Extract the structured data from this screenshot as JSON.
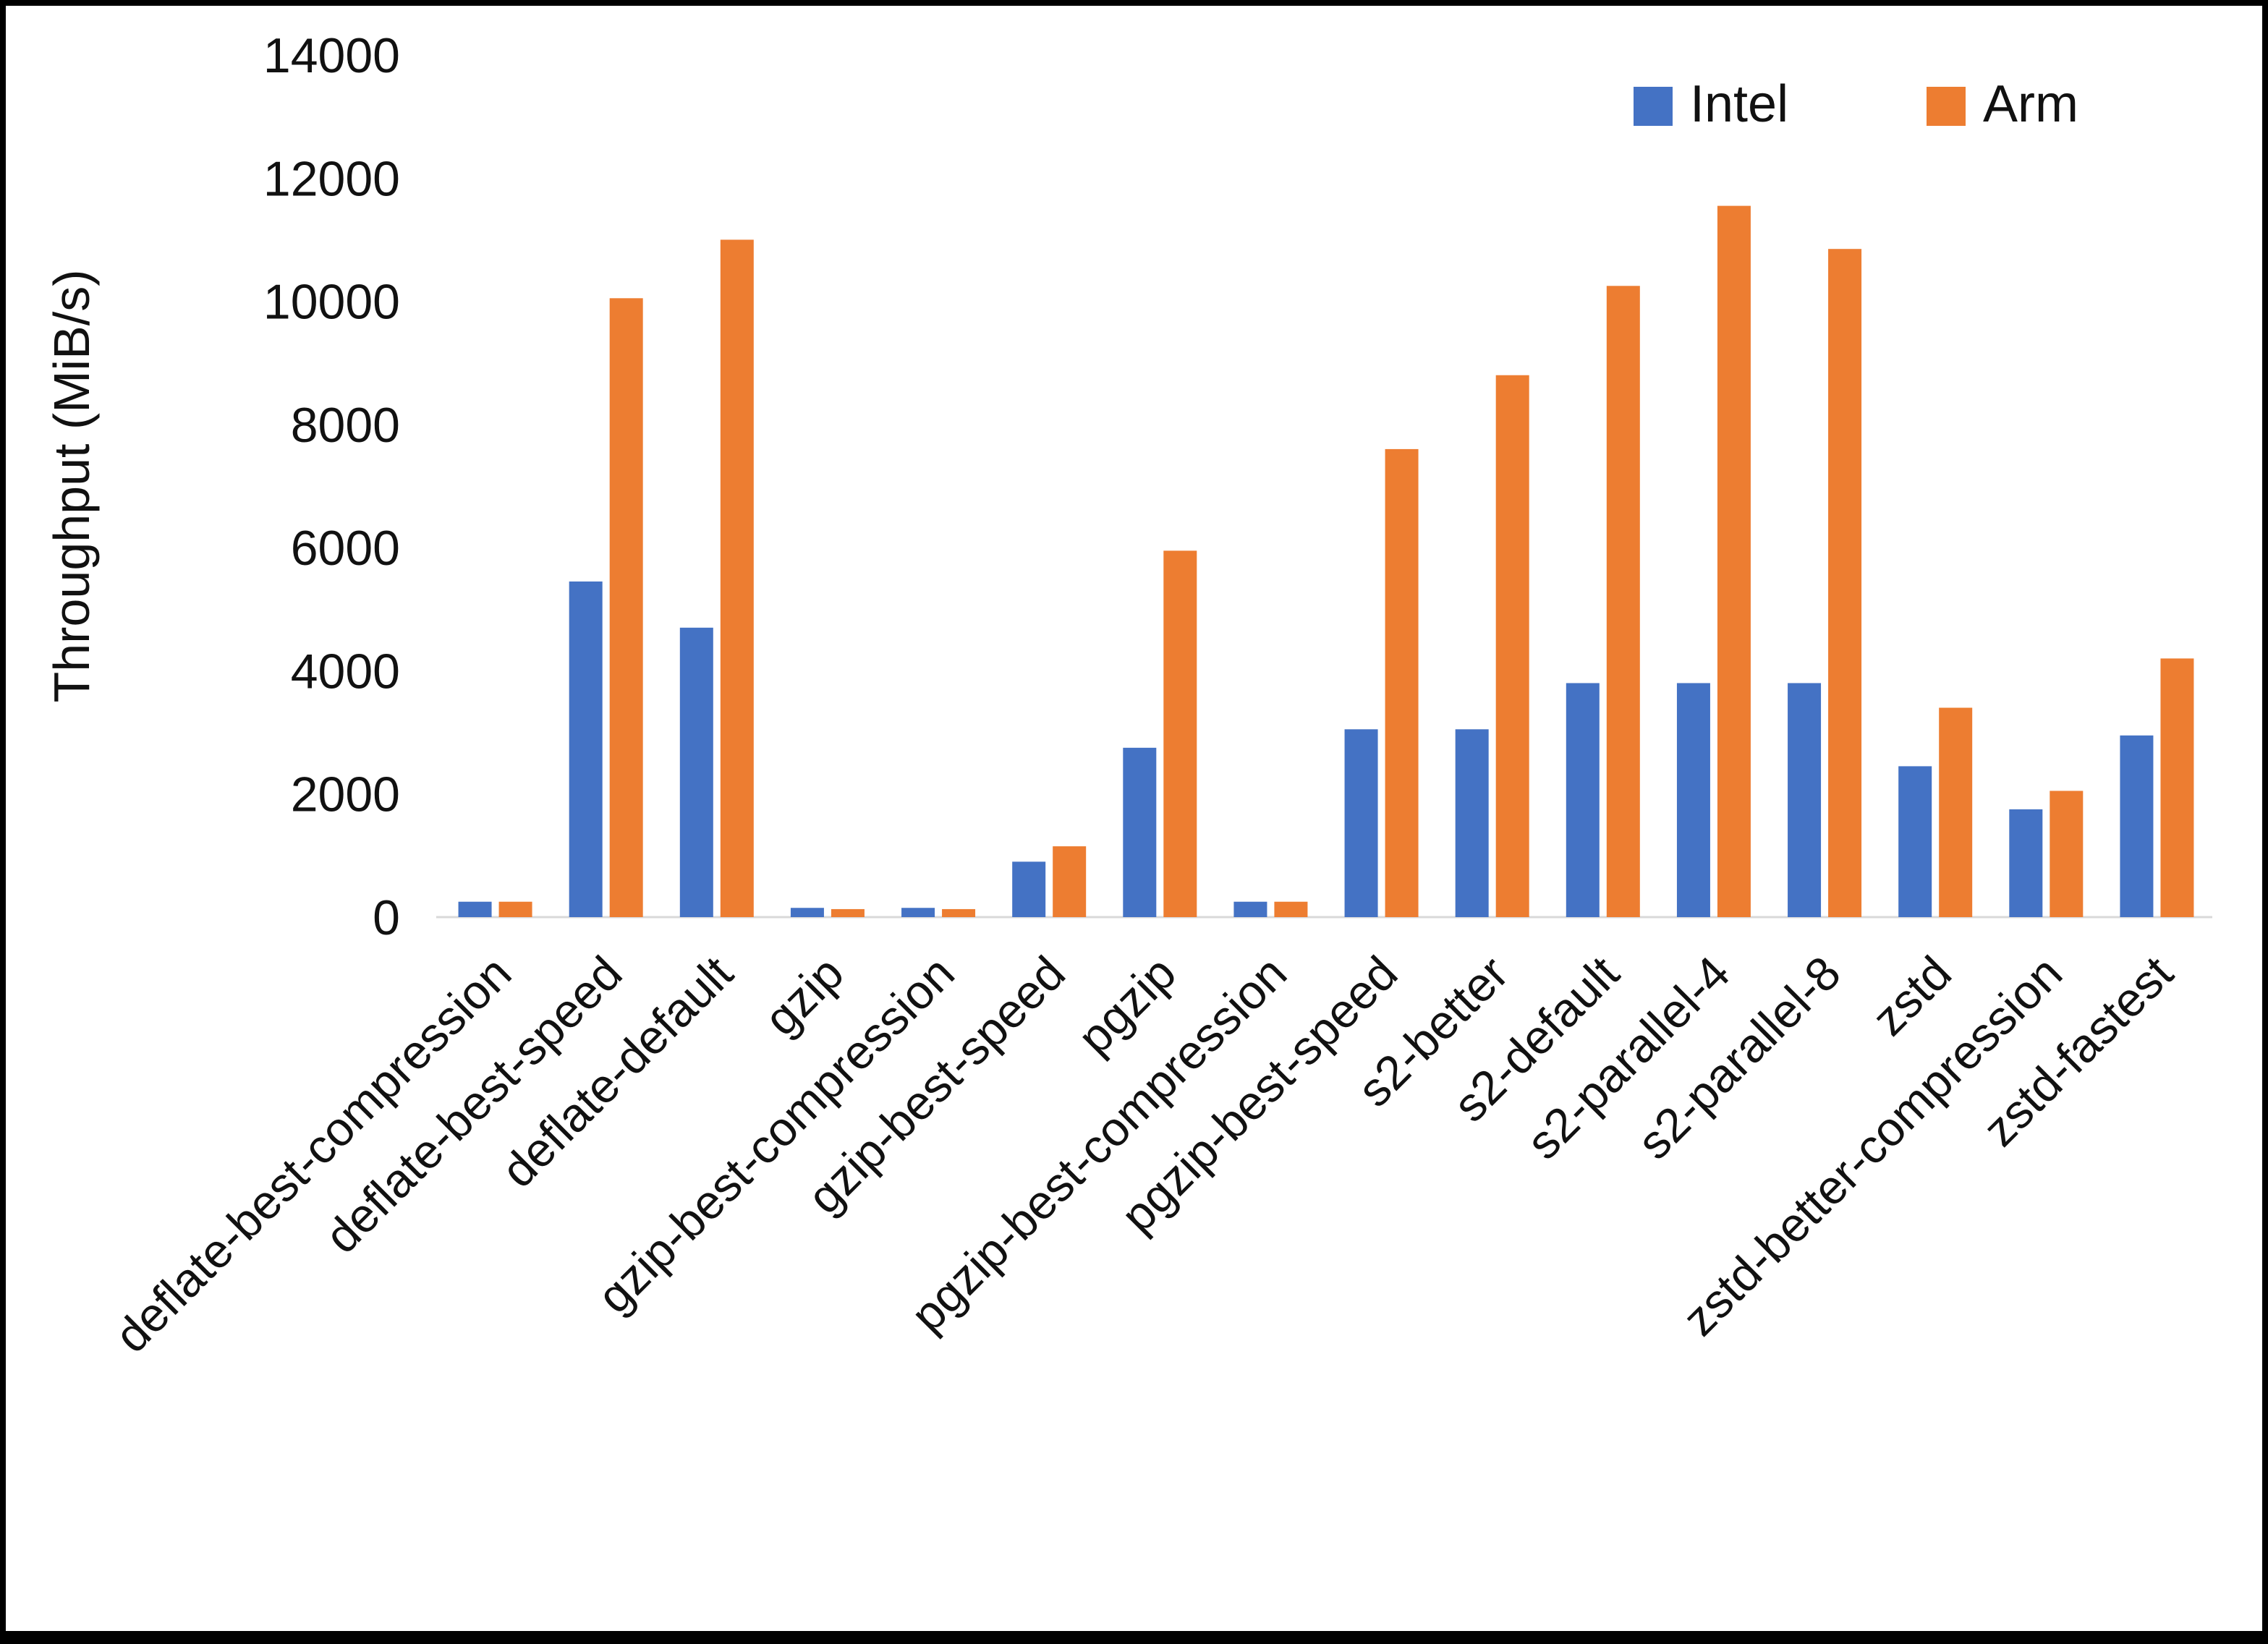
{
  "chart_data": {
    "type": "bar",
    "title": "",
    "xlabel": "",
    "ylabel": "Throughput (MiB/s)",
    "ylim": [
      0,
      14000
    ],
    "ytick_step": 2000,
    "grid": false,
    "legend_position": "top-right",
    "categories": [
      "deflate-best-compression",
      "deflate-best-speed",
      "deflate-default",
      "gzip",
      "gzip-best-compression",
      "gzip-best-speed",
      "pgzip",
      "pgzip-best-compression",
      "pgzip-best-speed",
      "s2-better",
      "s2-default",
      "s2-parallel-4",
      "s2-parallel-8",
      "zstd",
      "zstd-better-compression",
      "zstd-fastest"
    ],
    "series": [
      {
        "name": "Intel",
        "color": "#4472C4",
        "values": [
          250,
          5450,
          4700,
          150,
          150,
          900,
          2750,
          250,
          3050,
          3050,
          3800,
          3800,
          3800,
          2450,
          1750,
          2950
        ]
      },
      {
        "name": "Arm",
        "color": "#ED7D31",
        "values": [
          250,
          10050,
          11000,
          130,
          130,
          1150,
          5950,
          250,
          7600,
          8800,
          10250,
          11550,
          10850,
          3400,
          2050,
          4200
        ]
      }
    ],
    "axis_line_color": "#d9d9d9",
    "text_color": "#111111"
  }
}
